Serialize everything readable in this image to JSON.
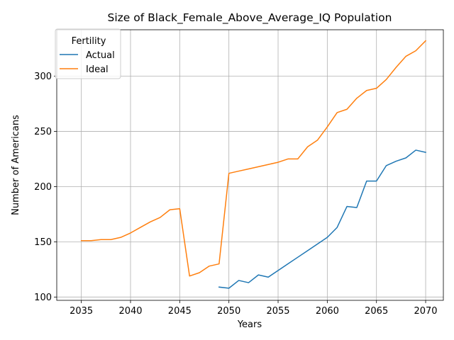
{
  "chart_data": {
    "type": "line",
    "title": "Size of Black_Female_Above_Average_IQ Population",
    "xlabel": "Years",
    "ylabel": "Number of Americans",
    "xlim": [
      2032.5,
      2071.8
    ],
    "ylim": [
      97,
      342
    ],
    "xticks": [
      2035,
      2040,
      2045,
      2050,
      2055,
      2060,
      2065,
      2070
    ],
    "yticks": [
      100,
      150,
      200,
      250,
      300
    ],
    "grid": true,
    "legend": {
      "title": "Fertility",
      "placement": "top-left"
    },
    "series": [
      {
        "name": "Actual",
        "color": "#1f77b4",
        "x": [
          2049,
          2050,
          2051,
          2052,
          2053,
          2054,
          2055,
          2056,
          2057,
          2058,
          2059,
          2060,
          2061,
          2062,
          2063,
          2064,
          2065,
          2066,
          2067,
          2068,
          2069,
          2070
        ],
        "y": [
          109,
          108,
          115,
          113,
          120,
          118,
          124,
          130,
          136,
          142,
          148,
          154,
          163,
          182,
          181,
          205,
          205,
          219,
          223,
          226,
          233,
          231
        ]
      },
      {
        "name": "Ideal",
        "color": "#ff7f0e",
        "x": [
          2035,
          2036,
          2037,
          2038,
          2039,
          2040,
          2041,
          2042,
          2043,
          2044,
          2045,
          2046,
          2047,
          2048,
          2049,
          2050,
          2051,
          2052,
          2053,
          2054,
          2055,
          2056,
          2057,
          2058,
          2059,
          2060,
          2061,
          2062,
          2063,
          2064,
          2065,
          2066,
          2067,
          2068,
          2069,
          2070
        ],
        "y": [
          151,
          151,
          152,
          152,
          154,
          158,
          163,
          168,
          172,
          179,
          180,
          119,
          122,
          128,
          130,
          212,
          214,
          216,
          218,
          220,
          222,
          225,
          225,
          236,
          242,
          254,
          267,
          270,
          280,
          287,
          289,
          297,
          308,
          318,
          323,
          332
        ]
      }
    ]
  }
}
